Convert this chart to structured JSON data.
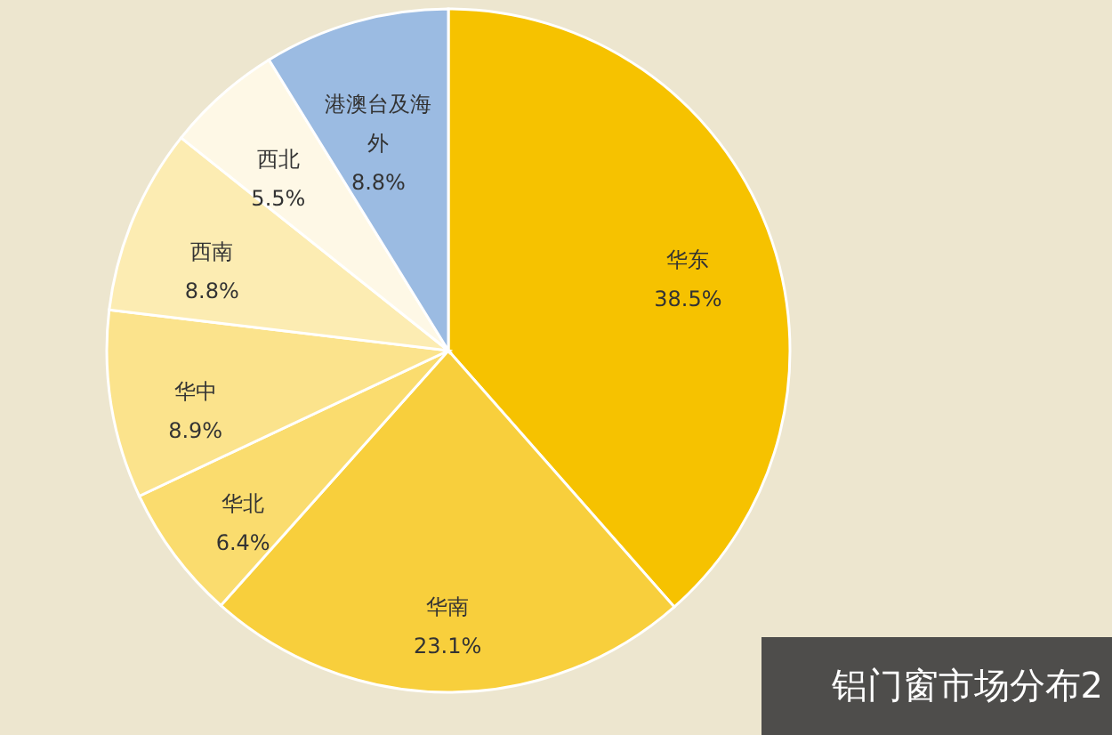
{
  "chart_data": {
    "type": "pie",
    "title": "铝门窗市场分布2",
    "categories": [
      "华东",
      "华南",
      "华北",
      "华中",
      "西南",
      "西北",
      "港澳台及海外"
    ],
    "values": [
      38.5,
      23.1,
      6.4,
      8.9,
      8.8,
      5.5,
      8.8
    ],
    "value_labels": [
      "38.5%",
      "23.1%",
      "6.4%",
      "8.9%",
      "8.8%",
      "5.5%",
      "8.8%"
    ],
    "colors": [
      "#f6c200",
      "#f8cf3c",
      "#fadc6e",
      "#fbe38c",
      "#fcecb2",
      "#fef8e6",
      "#9bbbe2"
    ]
  }
}
